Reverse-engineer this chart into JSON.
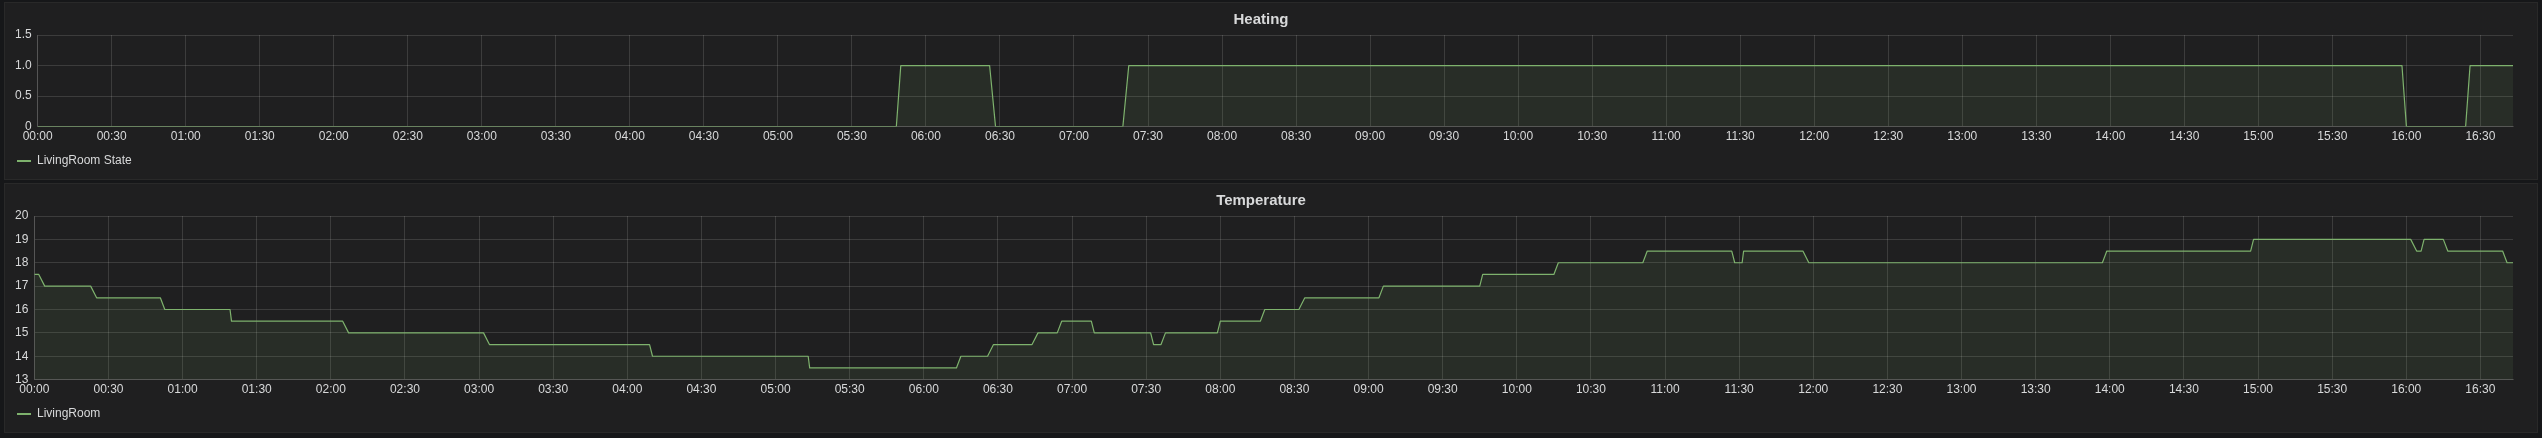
{
  "chart_data": [
    {
      "type": "area",
      "title": "Heating",
      "legend": "bottom left",
      "grid": true,
      "xlim": [
        0,
        16.72
      ],
      "ylim": [
        0,
        1.5
      ],
      "yticks": [
        0,
        0.5,
        {
          "value": 1,
          "label": "1.0"
        },
        1.5
      ],
      "xticks": [
        {
          "value": 0,
          "label": "00:00"
        },
        {
          "value": 0.5,
          "label": "00:30"
        },
        {
          "value": 1,
          "label": "01:00"
        },
        {
          "value": 1.5,
          "label": "01:30"
        },
        {
          "value": 2,
          "label": "02:00"
        },
        {
          "value": 2.5,
          "label": "02:30"
        },
        {
          "value": 3,
          "label": "03:00"
        },
        {
          "value": 3.5,
          "label": "03:30"
        },
        {
          "value": 4,
          "label": "04:00"
        },
        {
          "value": 4.5,
          "label": "04:30"
        },
        {
          "value": 5,
          "label": "05:00"
        },
        {
          "value": 5.5,
          "label": "05:30"
        },
        {
          "value": 6,
          "label": "06:00"
        },
        {
          "value": 6.5,
          "label": "06:30"
        },
        {
          "value": 7,
          "label": "07:00"
        },
        {
          "value": 7.5,
          "label": "07:30"
        },
        {
          "value": 8,
          "label": "08:00"
        },
        {
          "value": 8.5,
          "label": "08:30"
        },
        {
          "value": 9,
          "label": "09:00"
        },
        {
          "value": 9.5,
          "label": "09:30"
        },
        {
          "value": 10,
          "label": "10:00"
        },
        {
          "value": 10.5,
          "label": "10:30"
        },
        {
          "value": 11,
          "label": "11:00"
        },
        {
          "value": 11.5,
          "label": "11:30"
        },
        {
          "value": 12,
          "label": "12:00"
        },
        {
          "value": 12.5,
          "label": "12:30"
        },
        {
          "value": 13,
          "label": "13:00"
        },
        {
          "value": 13.5,
          "label": "13:30"
        },
        {
          "value": 14,
          "label": "14:00"
        },
        {
          "value": 14.5,
          "label": "14:30"
        },
        {
          "value": 15,
          "label": "15:00"
        },
        {
          "value": 15.5,
          "label": "15:30"
        },
        {
          "value": 16,
          "label": "16:00"
        },
        {
          "value": 16.5,
          "label": "16:30"
        }
      ],
      "x": [
        0,
        5.8,
        5.83,
        6.43,
        6.47,
        7.33,
        7.37,
        15.97,
        16.0,
        16.4,
        16.43,
        16.72
      ],
      "series": [
        {
          "name": "LivingRoom State",
          "color": "#7eb26d",
          "values": [
            0,
            0,
            1,
            1,
            0,
            0,
            1,
            1,
            0,
            0,
            1,
            1
          ]
        }
      ]
    },
    {
      "type": "area",
      "title": "Temperature",
      "legend": "bottom left",
      "grid": true,
      "xlim": [
        0,
        16.72
      ],
      "ylim": [
        13,
        20
      ],
      "yticks": [
        13,
        14,
        15,
        16,
        17,
        18,
        19,
        20
      ],
      "xticks": [
        {
          "value": 0,
          "label": "00:00"
        },
        {
          "value": 0.5,
          "label": "00:30"
        },
        {
          "value": 1,
          "label": "01:00"
        },
        {
          "value": 1.5,
          "label": "01:30"
        },
        {
          "value": 2,
          "label": "02:00"
        },
        {
          "value": 2.5,
          "label": "02:30"
        },
        {
          "value": 3,
          "label": "03:00"
        },
        {
          "value": 3.5,
          "label": "03:30"
        },
        {
          "value": 4,
          "label": "04:00"
        },
        {
          "value": 4.5,
          "label": "04:30"
        },
        {
          "value": 5,
          "label": "05:00"
        },
        {
          "value": 5.5,
          "label": "05:30"
        },
        {
          "value": 6,
          "label": "06:00"
        },
        {
          "value": 6.5,
          "label": "06:30"
        },
        {
          "value": 7,
          "label": "07:00"
        },
        {
          "value": 7.5,
          "label": "07:30"
        },
        {
          "value": 8,
          "label": "08:00"
        },
        {
          "value": 8.5,
          "label": "08:30"
        },
        {
          "value": 9,
          "label": "09:00"
        },
        {
          "value": 9.5,
          "label": "09:30"
        },
        {
          "value": 10,
          "label": "10:00"
        },
        {
          "value": 10.5,
          "label": "10:30"
        },
        {
          "value": 11,
          "label": "11:00"
        },
        {
          "value": 11.5,
          "label": "11:30"
        },
        {
          "value": 12,
          "label": "12:00"
        },
        {
          "value": 12.5,
          "label": "12:30"
        },
        {
          "value": 13,
          "label": "13:00"
        },
        {
          "value": 13.5,
          "label": "13:30"
        },
        {
          "value": 14,
          "label": "14:00"
        },
        {
          "value": 14.5,
          "label": "14:30"
        },
        {
          "value": 15,
          "label": "15:00"
        },
        {
          "value": 15.5,
          "label": "15:30"
        },
        {
          "value": 16,
          "label": "16:00"
        },
        {
          "value": 16.5,
          "label": "16:30"
        }
      ],
      "x": [
        0,
        0.03,
        0.07,
        0.38,
        0.42,
        0.85,
        0.88,
        1.32,
        1.33,
        2.08,
        2.12,
        3.03,
        3.07,
        4.15,
        4.17,
        5.22,
        5.23,
        6.22,
        6.25,
        6.43,
        6.47,
        6.73,
        6.77,
        6.9,
        6.93,
        7.13,
        7.15,
        7.53,
        7.55,
        7.6,
        7.63,
        7.98,
        8.0,
        8.27,
        8.3,
        8.53,
        8.57,
        9.07,
        9.1,
        9.75,
        9.77,
        10.25,
        10.28,
        10.85,
        10.88,
        11.45,
        11.47,
        11.52,
        11.53,
        11.93,
        11.97,
        13.95,
        13.98,
        14.95,
        14.97,
        16.03,
        16.07,
        16.1,
        16.12,
        16.25,
        16.28,
        16.65,
        16.68,
        16.72
      ],
      "series": [
        {
          "name": "LivingRoom",
          "color": "#7eb26d",
          "values": [
            17.5,
            17.5,
            17,
            17,
            16.5,
            16.5,
            16,
            16,
            15.5,
            15.5,
            15,
            15,
            14.5,
            14.5,
            14,
            14,
            13.5,
            13.5,
            14,
            14,
            14.5,
            14.5,
            15,
            15,
            15.5,
            15.5,
            15,
            15,
            14.5,
            14.5,
            15,
            15,
            15.5,
            15.5,
            16,
            16,
            16.5,
            16.5,
            17,
            17,
            17.5,
            17.5,
            18,
            18,
            18.5,
            18.5,
            18,
            18,
            18.5,
            18.5,
            18,
            18,
            18.5,
            18.5,
            19,
            19,
            18.5,
            18.5,
            19,
            19,
            18.5,
            18.5,
            18,
            18
          ]
        }
      ]
    }
  ]
}
